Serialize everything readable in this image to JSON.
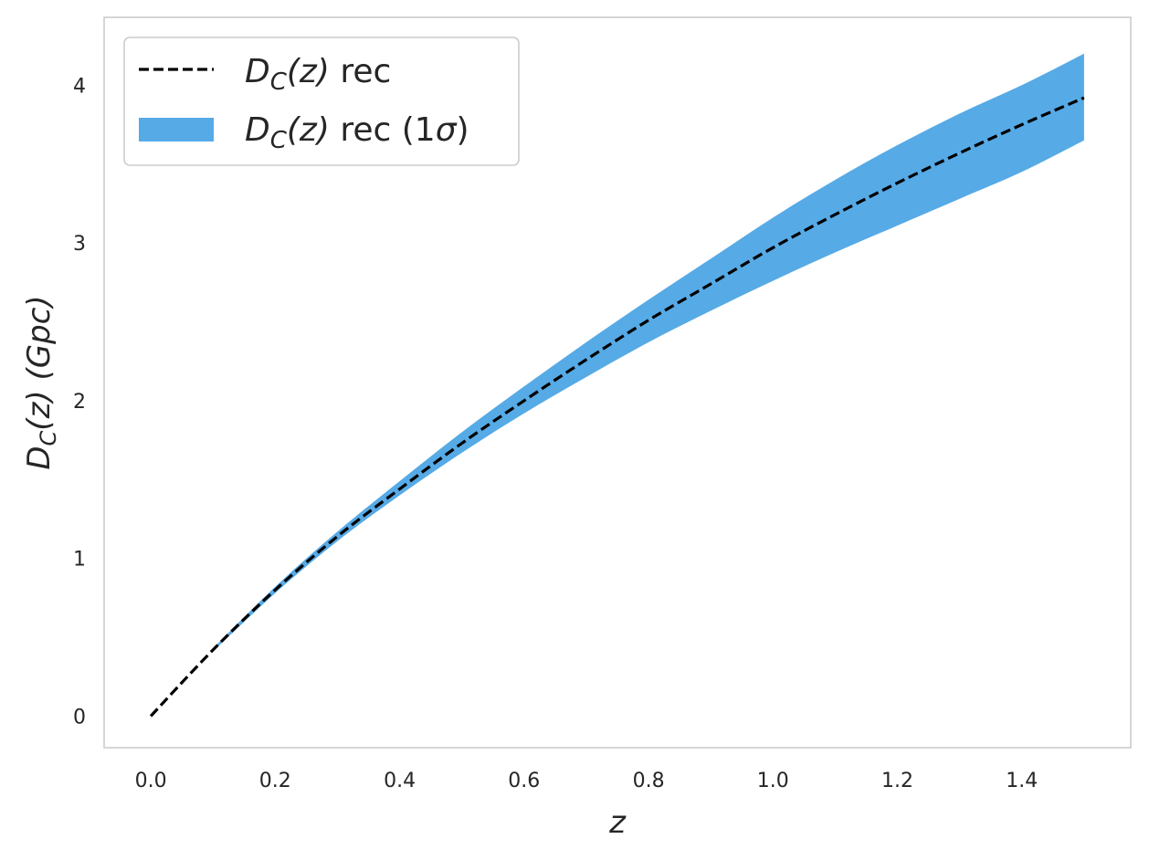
{
  "chart_data": {
    "type": "line",
    "title": "",
    "xlabel": "z",
    "ylabel": "D_C(z) (Gpc)",
    "xlim": [
      -0.075,
      1.575
    ],
    "ylim": [
      -0.2,
      4.43
    ],
    "x_ticks": [
      0.0,
      0.2,
      0.4,
      0.6,
      0.8,
      1.0,
      1.2,
      1.4
    ],
    "x_tick_labels": [
      "0.0",
      "0.2",
      "0.4",
      "0.6",
      "0.8",
      "1.0",
      "1.2",
      "1.4"
    ],
    "y_ticks": [
      0,
      1,
      2,
      3,
      4
    ],
    "y_tick_labels": [
      "0",
      "1",
      "2",
      "3",
      "4"
    ],
    "grid": false,
    "legend_position": "top-left",
    "x": [
      0.0,
      0.1,
      0.2,
      0.3,
      0.4,
      0.5,
      0.6,
      0.7,
      0.8,
      0.9,
      1.0,
      1.1,
      1.2,
      1.3,
      1.4,
      1.5
    ],
    "series": [
      {
        "name": "D_C(z) rec",
        "style": "dashed",
        "color": "#000000",
        "values": [
          0.0,
          0.42,
          0.8,
          1.14,
          1.44,
          1.73,
          2.0,
          2.26,
          2.51,
          2.74,
          2.97,
          3.18,
          3.38,
          3.57,
          3.75,
          3.92
        ]
      },
      {
        "name": "D_C(z) rec (1σ)",
        "style": "band",
        "color": "#56aae6",
        "band_x": [
          0.1,
          0.2,
          0.3,
          0.4,
          0.5,
          0.6,
          0.7,
          0.8,
          0.9,
          1.0,
          1.1,
          1.2,
          1.3,
          1.4,
          1.5
        ],
        "lower": [
          0.41,
          0.78,
          1.11,
          1.4,
          1.67,
          1.92,
          2.15,
          2.37,
          2.57,
          2.76,
          2.94,
          3.11,
          3.28,
          3.45,
          3.65
        ],
        "upper": [
          0.43,
          0.82,
          1.17,
          1.49,
          1.8,
          2.09,
          2.37,
          2.64,
          2.9,
          3.16,
          3.4,
          3.62,
          3.82,
          4.0,
          4.2
        ]
      }
    ]
  },
  "legend": {
    "line_prefix": "D",
    "line_sub": "C",
    "line_mid": "(z)",
    "line_suffix": " rec",
    "band_prefix": "D",
    "band_sub": "C",
    "band_mid": "(z)",
    "band_suffix": " rec (1",
    "band_sigma": "σ",
    "band_close": ")"
  },
  "axis_text": {
    "xlabel": "z",
    "ylabel_d": "D",
    "ylabel_sub": "C",
    "ylabel_rest": "(z) (Gpc)"
  }
}
